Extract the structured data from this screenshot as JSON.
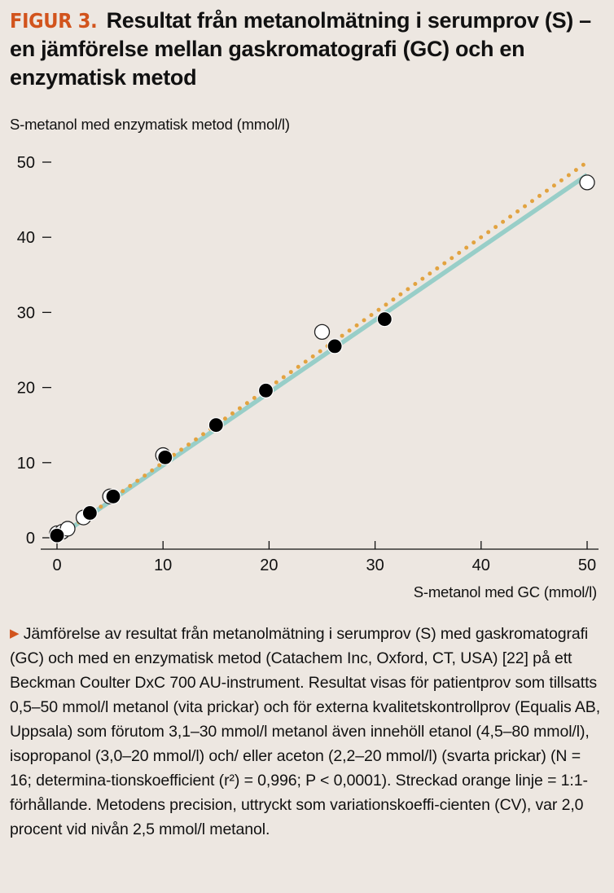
{
  "figure": {
    "label": "FIGUR 3.",
    "title": "Resultat från metanolmätning i serumprov (S) – en  jämförelse mellan gaskromatografi (GC) och en enzymatisk metod"
  },
  "chart_data": {
    "type": "scatter",
    "title": "Resultat från metanolmätning i serumprov (S) – en jämförelse mellan gaskromatografi (GC) och en enzymatisk metod",
    "xlabel": "S-metanol med GC (mmol/l)",
    "ylabel": "S-metanol med enzymatisk metod (mmol/l)",
    "xlim": [
      0,
      50
    ],
    "ylim": [
      0,
      50
    ],
    "x_ticks": [
      0,
      10,
      20,
      30,
      40,
      50
    ],
    "y_ticks": [
      0,
      10,
      20,
      30,
      40,
      50
    ],
    "grid": false,
    "series": [
      {
        "name": "Patientprov med tillsatt metanol (vita prickar)",
        "marker": "open-circle",
        "color": "#ffffff",
        "x": [
          0.0,
          0.5,
          1.0,
          2.5,
          5.0,
          10.0,
          25.0,
          50.0
        ],
        "y": [
          0.6,
          0.8,
          1.2,
          2.7,
          5.5,
          11.0,
          27.4,
          47.3
        ]
      },
      {
        "name": "Externa kvalitetskontrollprov (svarta prickar)",
        "marker": "filled-circle",
        "color": "#000000",
        "x": [
          0.0,
          3.1,
          5.3,
          10.2,
          15.0,
          19.7,
          26.2,
          30.9
        ],
        "y": [
          0.3,
          3.3,
          5.5,
          10.7,
          15.0,
          19.6,
          25.5,
          29.1
        ]
      }
    ],
    "lines": [
      {
        "name": "Regressionslinje",
        "style": "solid",
        "color": "#98cec8",
        "x": [
          0,
          50
        ],
        "y": [
          0,
          48.3
        ]
      },
      {
        "name": "1:1-förhållande",
        "style": "dotted",
        "color": "#e2a340",
        "x": [
          0,
          50
        ],
        "y": [
          0,
          50
        ]
      }
    ]
  },
  "caption": {
    "arrow": "▶",
    "text": "Jämförelse av resultat från metanolmätning i serumprov (S) med gaskromatografi (GC) och med en enzymatisk metod (Catachem Inc, Oxford, CT, USA) [22] på ett Beckman Coulter DxC 700 AU-instrument. Resultat visas för patientprov som tillsatts 0,5–50 mmol/l metanol (vita prickar) och för externa kvalitetskontrollprov (Equalis AB, Uppsala) som förutom 3,1–30 mmol/l metanol även innehöll etanol (4,5–80 mmol/l), isopropanol (3,0–20 mmol/l) och/ eller aceton (2,2–20 mmol/l) (svarta prickar) (N = 16; determina-tionskoefficient (r²) = 0,996; P < 0,0001). Streckad orange linje = 1:1-förhållande. Metodens precision, uttryckt som variationskoeffi-cienten (CV), var 2,0 procent vid nivån 2,5 mmol/l metanol."
  },
  "colors": {
    "background": "#ede7e1",
    "accent": "#d2541d",
    "regression": "#98cec8",
    "identity": "#e2a340"
  }
}
